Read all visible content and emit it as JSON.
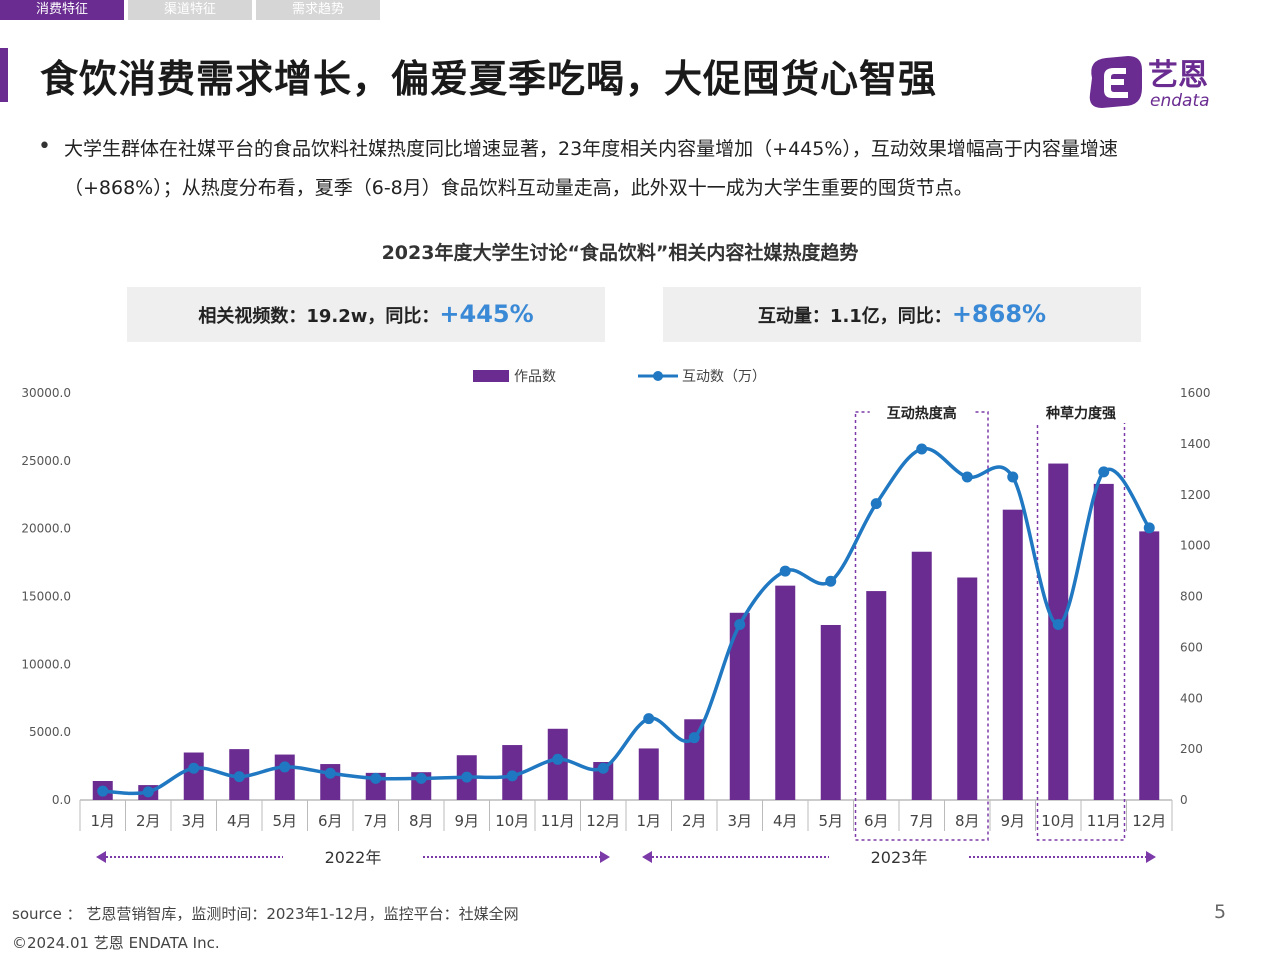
{
  "tabs": [
    "消费特征",
    "渠道特征",
    "需求趋势"
  ],
  "page_title": "食饮消费需求增长，偏爱夏季吃喝，大促囤货心智强",
  "logo": {
    "text_cn": "艺恩",
    "text_en": "endata",
    "brand_color": "#6a2c91"
  },
  "bullet": "大学生群体在社媒平台的食品饮料社媒热度同比增速显著，23年度相关内容量增加（+445%），互动效果增幅高于内容量增速（+868%）；从热度分布看，夏季（6-8月）食品饮料互动量走高，此外双十一成为大学生重要的囤货节点。",
  "kpis": [
    {
      "label": "相关视频数：19.2w，同比：",
      "value": "+445%"
    },
    {
      "label": "互动量：1.1亿，同比：",
      "value": "+868%"
    }
  ],
  "chart_data": {
    "type": "bar",
    "title": "2023年度大学生讨论“食品饮料”相关内容社媒热度趋势",
    "categories": [
      "1月",
      "2月",
      "3月",
      "4月",
      "5月",
      "6月",
      "7月",
      "8月",
      "9月",
      "10月",
      "11月",
      "12月",
      "1月",
      "2月",
      "3月",
      "4月",
      "5月",
      "6月",
      "7月",
      "8月",
      "9月",
      "10月",
      "11月",
      "12月"
    ],
    "year_groups": [
      {
        "label": "2022年",
        "from": 0,
        "to": 11
      },
      {
        "label": "2023年",
        "from": 12,
        "to": 23
      }
    ],
    "series": [
      {
        "name": "作品数",
        "type": "bar",
        "axis": "left",
        "color": "#6a2c91",
        "values": [
          1400,
          1100,
          3500,
          3750,
          3350,
          2650,
          2000,
          2050,
          3300,
          4050,
          5250,
          2800,
          3800,
          5950,
          13800,
          15800,
          12900,
          15400,
          18300,
          16400,
          21400,
          24800,
          23300,
          19800
        ]
      },
      {
        "name": "互动数（万）",
        "type": "line",
        "axis": "right",
        "color": "#1f78c1",
        "values": [
          35,
          32,
          125,
          92,
          130,
          105,
          85,
          85,
          90,
          95,
          160,
          125,
          320,
          245,
          690,
          900,
          860,
          1165,
          1380,
          1270,
          1270,
          690,
          1290,
          1070
        ]
      }
    ],
    "left_axis": {
      "min": 0,
      "max": 30000,
      "ticks": [
        "0.0",
        "5000.0",
        "10000.0",
        "15000.0",
        "20000.0",
        "25000.0",
        "30000.0"
      ]
    },
    "right_axis": {
      "min": 0,
      "max": 1600,
      "ticks": [
        "0",
        "200",
        "400",
        "600",
        "800",
        "1000",
        "1200",
        "1400",
        "1600"
      ]
    },
    "annotations": [
      {
        "label": "互动热度高",
        "from": 17,
        "to": 19
      },
      {
        "label": "种草力度强",
        "from": 21,
        "to": 22
      }
    ],
    "legend_position": "top-center",
    "grid": false
  },
  "footer": {
    "source": "source ： 艺恩营销智库，监测时间：2023年1-12月，监控平台：社媒全网",
    "copyright": "©2024.01  艺恩  ENDATA Inc.",
    "page_number": "5"
  }
}
